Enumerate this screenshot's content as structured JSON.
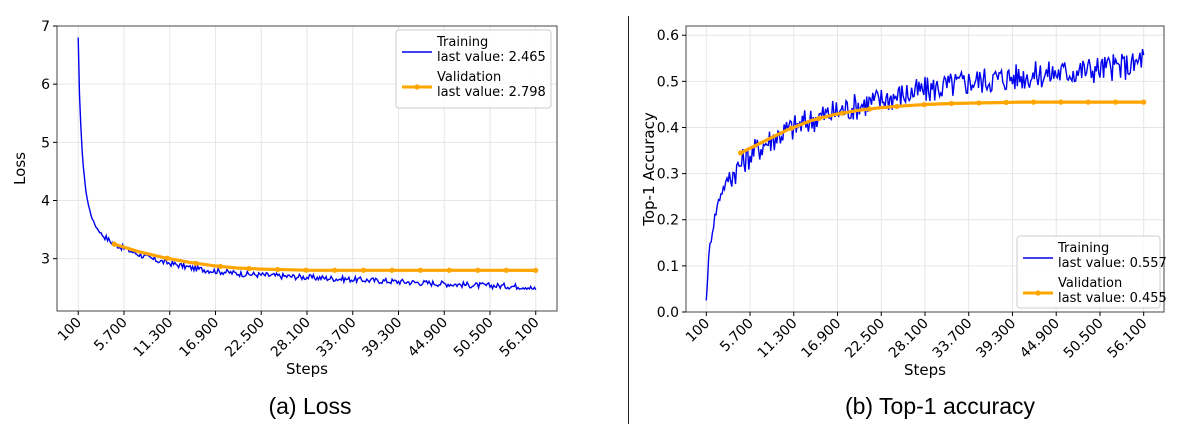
{
  "figure": {
    "caption_a": "(a) Loss",
    "caption_b": "(b) Top-1 accuracy",
    "colors": {
      "training": "#0000ee",
      "validation": "#ffa500",
      "grid": "#e6e6e6",
      "axes": "#444444"
    }
  },
  "chart_data": [
    {
      "type": "line",
      "xlabel": "Steps",
      "ylabel": "Loss",
      "xticks": [
        "100",
        "5.700",
        "11.300",
        "16.900",
        "22.500",
        "28.100",
        "33.700",
        "39.300",
        "44.900",
        "50.500",
        "56.100"
      ],
      "xtick_values": [
        100,
        5700,
        11300,
        16900,
        22500,
        28100,
        33700,
        39300,
        44900,
        50500,
        56100
      ],
      "xlim": [
        -2500,
        58700
      ],
      "ylim": [
        2.1,
        7.0
      ],
      "yticks": [
        3,
        4,
        5,
        6,
        7
      ],
      "grid": true,
      "legend_position": "top-right",
      "series": [
        {
          "name": "Training",
          "legend_text": "last value: 2.465",
          "color": "#0000ee",
          "x": [
            100,
            200,
            400,
            600,
            800,
            1000,
            1300,
            1600,
            2000,
            2500,
            3000,
            3500,
            4000,
            5000,
            6000,
            7000,
            8000,
            9000,
            10000,
            11000,
            12000,
            14000,
            16000,
            18000,
            20000,
            22500,
            25000,
            28000,
            31000,
            34000,
            37000,
            40000,
            43000,
            46000,
            49000,
            52000,
            55000,
            56100
          ],
          "values": [
            6.8,
            6.0,
            5.3,
            4.8,
            4.45,
            4.2,
            3.95,
            3.78,
            3.62,
            3.5,
            3.42,
            3.36,
            3.3,
            3.22,
            3.16,
            3.1,
            3.05,
            3.0,
            2.96,
            2.93,
            2.9,
            2.84,
            2.8,
            2.77,
            2.74,
            2.72,
            2.7,
            2.68,
            2.66,
            2.64,
            2.62,
            2.6,
            2.58,
            2.56,
            2.54,
            2.53,
            2.52,
            2.465
          ],
          "noise": 0.05
        },
        {
          "name": "Validation",
          "legend_text": "last value: 2.798",
          "color": "#ffa500",
          "x": [
            4500,
            7500,
            10500,
            13500,
            16500,
            19500,
            22500,
            25500,
            28500,
            31500,
            34500,
            37500,
            40500,
            43500,
            46500,
            49500,
            52500,
            56100
          ],
          "values": [
            3.25,
            3.12,
            3.02,
            2.94,
            2.88,
            2.84,
            2.82,
            2.81,
            2.8,
            2.8,
            2.8,
            2.8,
            2.8,
            2.8,
            2.8,
            2.8,
            2.8,
            2.798
          ],
          "marker_x": [
            4500,
            11000,
            14500,
            17500,
            21000,
            24500,
            28000,
            31500,
            35000,
            38500,
            42000,
            45500,
            49000,
            52500,
            56100
          ]
        }
      ]
    },
    {
      "type": "line",
      "xlabel": "Steps",
      "ylabel": "Top-1 Accuracy",
      "xticks": [
        "100",
        "5.700",
        "11.300",
        "16.900",
        "22.500",
        "28.100",
        "33.700",
        "39.300",
        "44.900",
        "50.500",
        "56.100"
      ],
      "xtick_values": [
        100,
        5700,
        11300,
        16900,
        22500,
        28100,
        33700,
        39300,
        44900,
        50500,
        56100
      ],
      "xlim": [
        -2500,
        58700
      ],
      "ylim": [
        0.0,
        0.62
      ],
      "yticks": [
        0.0,
        0.1,
        0.2,
        0.3,
        0.4,
        0.5,
        0.6
      ],
      "grid": true,
      "legend_position": "bottom-right",
      "series": [
        {
          "name": "Training",
          "legend_text": "last value: 0.557",
          "color": "#0000ee",
          "x": [
            100,
            300,
            600,
            1000,
            1500,
            2000,
            3000,
            4000,
            5000,
            6000,
            8000,
            10000,
            12000,
            14000,
            16000,
            18000,
            20000,
            22500,
            25000,
            28000,
            31000,
            34000,
            37000,
            40000,
            43000,
            46000,
            49000,
            52000,
            55000,
            56100
          ],
          "values": [
            0.025,
            0.09,
            0.15,
            0.19,
            0.23,
            0.26,
            0.29,
            0.31,
            0.33,
            0.345,
            0.37,
            0.39,
            0.405,
            0.42,
            0.43,
            0.44,
            0.45,
            0.46,
            0.47,
            0.48,
            0.49,
            0.5,
            0.505,
            0.51,
            0.515,
            0.52,
            0.525,
            0.53,
            0.535,
            0.557
          ],
          "noise": 0.03
        },
        {
          "name": "Validation",
          "legend_text": "last value: 0.455",
          "color": "#ffa500",
          "x": [
            4500,
            7500,
            10500,
            13500,
            16500,
            19500,
            22500,
            25500,
            28500,
            31500,
            34500,
            37500,
            40500,
            43500,
            46500,
            49500,
            52500,
            56100
          ],
          "values": [
            0.345,
            0.37,
            0.395,
            0.415,
            0.428,
            0.437,
            0.443,
            0.447,
            0.45,
            0.452,
            0.453,
            0.454,
            0.455,
            0.455,
            0.455,
            0.455,
            0.455,
            0.455
          ],
          "marker_x": [
            4500,
            11000,
            14500,
            17500,
            21000,
            24500,
            28000,
            31500,
            35000,
            38500,
            42000,
            45500,
            49000,
            52500,
            56100
          ]
        }
      ]
    }
  ]
}
